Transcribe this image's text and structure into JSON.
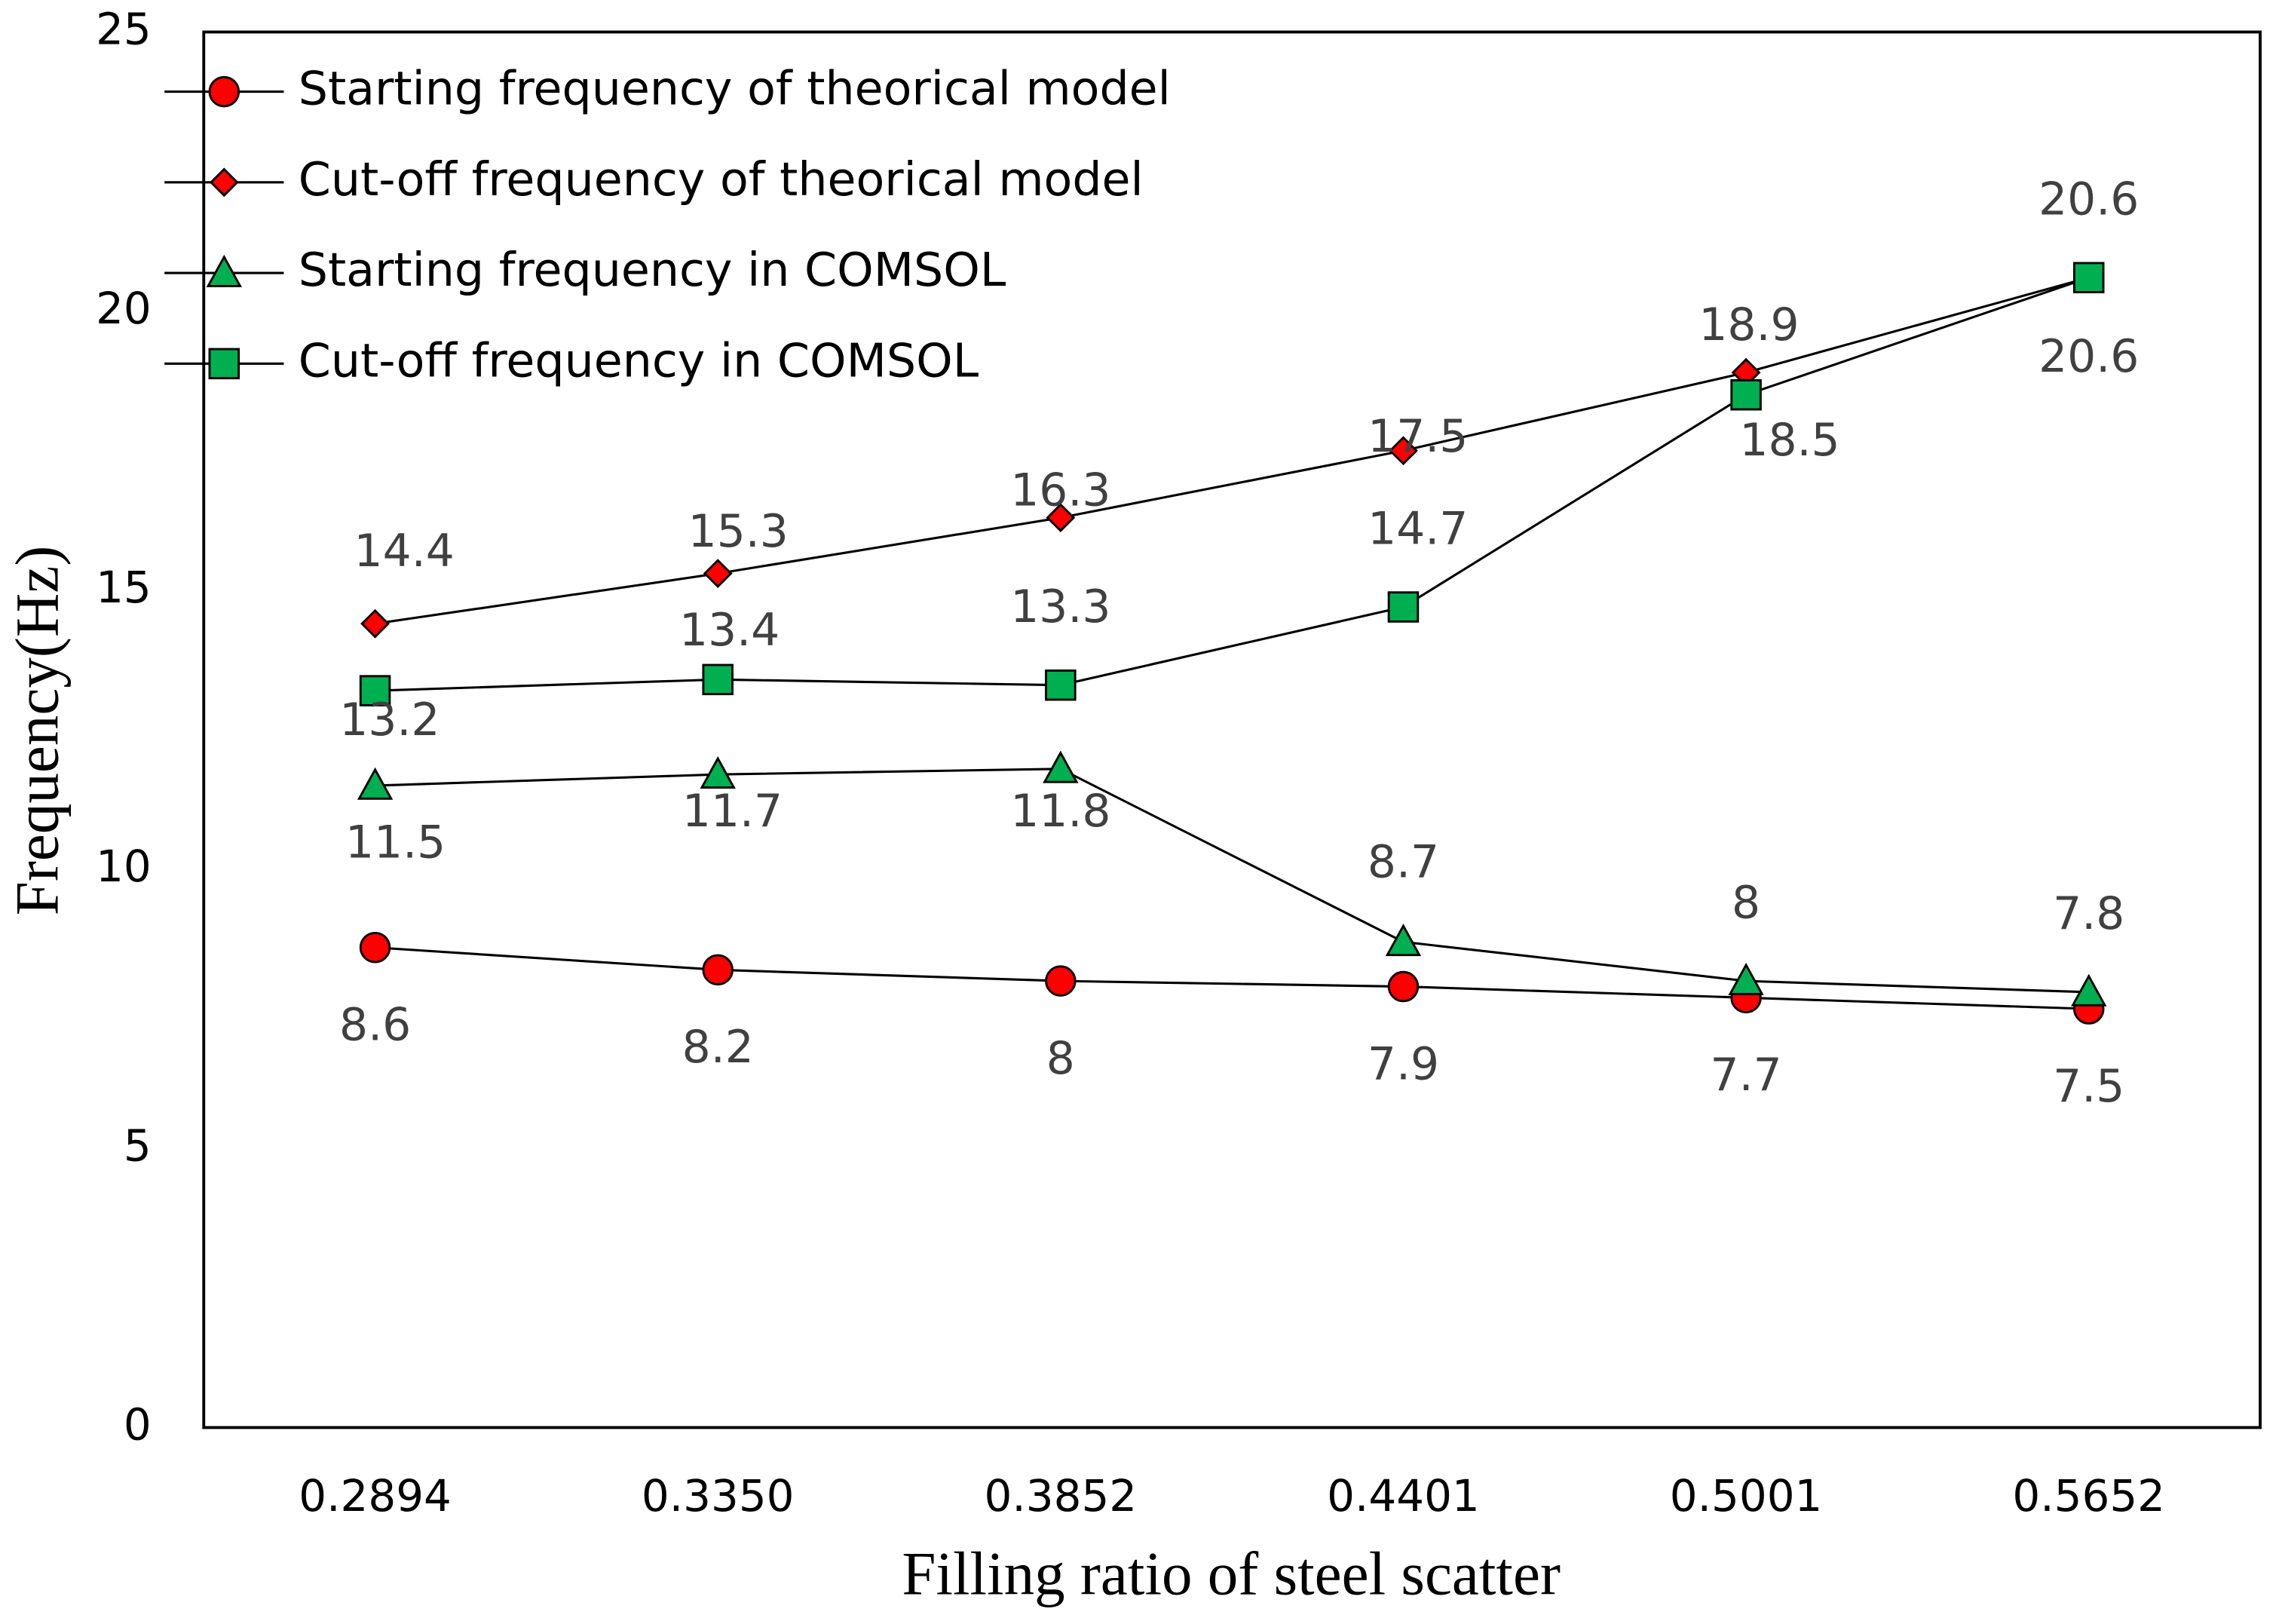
{
  "chart_data": {
    "type": "line",
    "x_label": "Filling ratio of steel scatter",
    "y_label": "Frequency(Hz)",
    "categories": [
      "0.2894",
      "0.3350",
      "0.3852",
      "0.4401",
      "0.5001",
      "0.5652"
    ],
    "series": [
      {
        "name": "Starting frequency of theorical model",
        "color": "#ff0000",
        "marker": "circle",
        "values": [
          8.6,
          8.2,
          8,
          7.9,
          7.7,
          7.5
        ]
      },
      {
        "name": "Cut-off frequency of theorical model",
        "color": "#ff0000",
        "marker": "diamond",
        "values": [
          14.4,
          15.3,
          16.3,
          17.5,
          18.9,
          20.6
        ]
      },
      {
        "name": "Starting frequency in COMSOL",
        "color": "#00b050",
        "marker": "triangle",
        "values": [
          11.5,
          11.7,
          11.8,
          8.7,
          8,
          7.8
        ]
      },
      {
        "name": "Cut-off frequency in COMSOL",
        "color": "#00b050",
        "marker": "square",
        "values": [
          13.2,
          13.4,
          13.3,
          14.7,
          18.5,
          20.6
        ]
      }
    ],
    "ylim": [
      0,
      25
    ],
    "yticks": [
      0,
      5,
      10,
      15,
      20,
      25
    ],
    "legend": "upper-left"
  }
}
